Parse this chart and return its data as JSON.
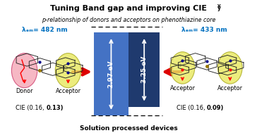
{
  "title_main": "Tuning Band gap and improving CIE",
  "title_sub_y": "y",
  "subtitle": "p-relationship of donors and acceptors on phenothiazine core",
  "lambda_left": "λₑₘ= 482 nm",
  "lambda_right": "λₑₘ= 433 nm",
  "cie_left_pre": "CIE (0.16, ",
  "cie_left_bold": "0.13",
  "cie_left_post": ")",
  "cie_right_pre": "CIE (0.16, ",
  "cie_right_bold": "0.09",
  "cie_right_post": ")",
  "footer": "Solution processed devices",
  "donor_label": "Donor",
  "acceptor_label": "Acceptor",
  "energy_left": "2.97 eV",
  "energy_right": "3.25 eV",
  "bg_color": "#ffffff",
  "blue_light": "#4472c4",
  "blue_dark": "#1f3a6e",
  "arrow_red": "#dd0000",
  "lambda_color": "#0070c0",
  "pink_fill": "#f4a0b0",
  "pink_edge": "#cc3366",
  "yellow_fill": "#e8e860",
  "yellow_edge": "#aaaa20",
  "mol_color": "#222222"
}
